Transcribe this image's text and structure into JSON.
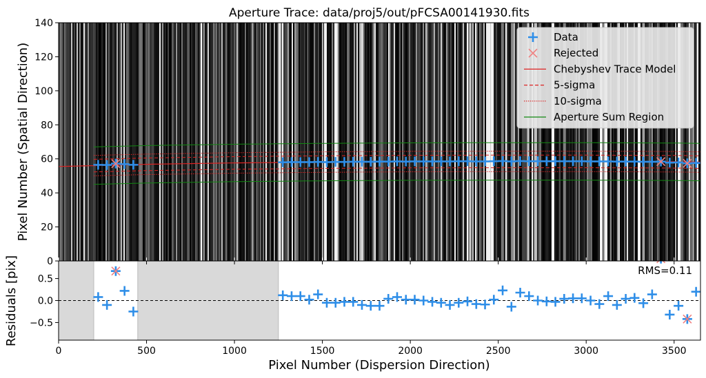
{
  "chart_data": [
    {
      "type": "scatter",
      "panel": "trace",
      "title": "Aperture Trace: data/proj5/out/pFCSA00141930.fits",
      "xlabel": "",
      "ylabel": "Pixel Number (Spatial Direction)",
      "xlim": [
        0,
        3650
      ],
      "ylim": [
        0,
        140
      ],
      "yticks": [
        0,
        20,
        40,
        60,
        80,
        100,
        120,
        140
      ],
      "background": "spectrum image (grayscale vertical emission lines)",
      "legend_position": "top-right",
      "legend": [
        "Data",
        "Rejected",
        "Chebyshev Trace Model",
        "5-sigma",
        "10-sigma",
        "Aperture Sum Region"
      ],
      "series": [
        {
          "name": "Data",
          "marker": "+",
          "color": "#2e8ee8",
          "x": [
            225,
            275,
            325,
            375,
            425,
            1275,
            1325,
            1375,
            1425,
            1475,
            1525,
            1575,
            1625,
            1675,
            1725,
            1775,
            1825,
            1875,
            1925,
            1975,
            2025,
            2075,
            2125,
            2175,
            2225,
            2275,
            2325,
            2375,
            2425,
            2475,
            2525,
            2575,
            2625,
            2675,
            2725,
            2775,
            2825,
            2875,
            2925,
            2975,
            3025,
            3075,
            3125,
            3175,
            3225,
            3275,
            3325,
            3375,
            3425,
            3475,
            3525,
            3575,
            3625
          ],
          "y": [
            56.5,
            56.4,
            57.2,
            56.9,
            56.5,
            58.0,
            58.1,
            58.1,
            58.1,
            58.2,
            58.1,
            58.2,
            58.2,
            58.3,
            58.3,
            58.3,
            58.4,
            58.4,
            58.5,
            58.4,
            58.5,
            58.5,
            58.5,
            58.5,
            58.5,
            58.6,
            58.6,
            58.5,
            58.5,
            58.6,
            58.7,
            58.5,
            58.7,
            58.6,
            58.6,
            58.6,
            58.6,
            58.6,
            58.6,
            58.6,
            58.5,
            58.5,
            58.5,
            58.4,
            58.4,
            58.4,
            58.3,
            58.3,
            58.4,
            57.8,
            57.9,
            57.4,
            57.6
          ]
        },
        {
          "name": "Rejected",
          "marker": "x",
          "color": "#f08080",
          "x": [
            325,
            3425,
            3575
          ],
          "y": [
            57.2,
            58.4,
            57.4
          ]
        },
        {
          "name": "Chebyshev Trace Model",
          "color": "#dd2222",
          "style": "solid",
          "x": [
            0,
            500,
            1000,
            1500,
            2000,
            2500,
            3000,
            3500,
            3650
          ],
          "y": [
            55.5,
            56.8,
            57.6,
            58.1,
            58.4,
            58.5,
            58.5,
            58.3,
            58.1
          ]
        },
        {
          "name": "5-sigma",
          "color": "#dd2222",
          "style": "dashed",
          "x_range": [
            200,
            3650
          ],
          "offset": 3.7
        },
        {
          "name": "10-sigma",
          "color": "#dd2222",
          "style": "dotted",
          "x_range": [
            200,
            3650
          ],
          "offset": 6.0
        },
        {
          "name": "Aperture Sum Region",
          "color": "#118811",
          "style": "solid",
          "x_range": [
            200,
            3650
          ],
          "offset": 11.0
        }
      ]
    },
    {
      "type": "scatter",
      "panel": "residuals",
      "xlabel": "Pixel Number (Dispersion Direction)",
      "ylabel": "Residuals [pix]",
      "xlim": [
        0,
        3650
      ],
      "ylim": [
        -0.9,
        0.9
      ],
      "xticks": [
        0,
        500,
        1000,
        1500,
        2000,
        2500,
        3000,
        3500
      ],
      "yticks": [
        -0.5,
        0.0,
        0.5
      ],
      "ytick_labels": [
        "−0.5",
        "0.0",
        "0.5"
      ],
      "annotation": "RMS=0.11",
      "shaded_x_ranges": [
        [
          0,
          200
        ],
        [
          450,
          1250
        ]
      ],
      "zero_line": "dashed",
      "series": [
        {
          "name": "Data",
          "marker": "+",
          "color": "#2e8ee8",
          "x": [
            225,
            275,
            325,
            375,
            425,
            1275,
            1325,
            1375,
            1425,
            1475,
            1525,
            1575,
            1625,
            1675,
            1725,
            1775,
            1825,
            1875,
            1925,
            1975,
            2025,
            2075,
            2125,
            2175,
            2225,
            2275,
            2325,
            2375,
            2425,
            2475,
            2525,
            2575,
            2625,
            2675,
            2725,
            2775,
            2825,
            2875,
            2925,
            2975,
            3025,
            3075,
            3125,
            3175,
            3225,
            3275,
            3325,
            3375,
            3425,
            3475,
            3525,
            3575,
            3625
          ],
          "y": [
            0.08,
            -0.1,
            0.67,
            0.22,
            -0.25,
            0.12,
            0.1,
            0.1,
            0.02,
            0.14,
            -0.05,
            -0.05,
            -0.03,
            -0.03,
            -0.1,
            -0.12,
            -0.12,
            0.04,
            0.08,
            0.02,
            0.02,
            0.0,
            -0.03,
            -0.05,
            -0.1,
            -0.05,
            -0.02,
            -0.08,
            -0.09,
            0.02,
            0.23,
            -0.14,
            0.18,
            0.1,
            0.0,
            -0.02,
            -0.03,
            0.04,
            0.05,
            0.05,
            0.0,
            -0.08,
            0.1,
            -0.1,
            0.04,
            0.06,
            -0.06,
            0.14,
            0.95,
            -0.32,
            -0.12,
            -0.42,
            0.2
          ]
        },
        {
          "name": "Rejected",
          "marker": "x",
          "color": "#f08080",
          "x": [
            325,
            3425,
            3575
          ],
          "y": [
            0.67,
            0.95,
            -0.42
          ]
        }
      ]
    }
  ]
}
